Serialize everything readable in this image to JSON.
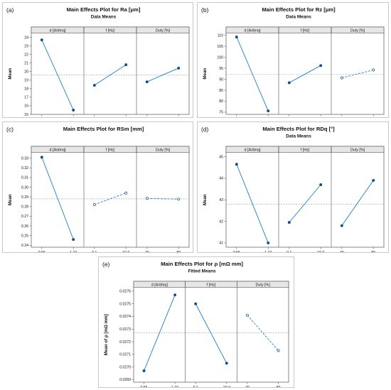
{
  "colors": {
    "line": "#1f7fc4",
    "marker": "#0a4e8e",
    "ref": "#9a9a9a",
    "border": "#c8c8c8",
    "header": "#e6e6e6"
  },
  "chart_data": [
    {
      "label": "(a)",
      "type": "line",
      "title": "Main Effects Plot for Ra [μm]",
      "subtitle": "Data Means",
      "ylabel": "Mean",
      "ylim": [
        15,
        24.5
      ],
      "yticks": [
        15,
        16,
        17,
        18,
        19,
        20,
        21,
        22,
        23,
        24
      ],
      "ref": 19.6,
      "factors": [
        {
          "name": "d [A/dmq]",
          "levels": [
            "0.55",
            "1.10"
          ],
          "values": [
            23.7,
            15.5
          ],
          "dashed": false
        },
        {
          "name": "f [Hz]",
          "levels": [
            "0.1",
            "10.0"
          ],
          "values": [
            18.4,
            20.8
          ],
          "dashed": false
        },
        {
          "name": "Duty [%]",
          "levels": [
            "70",
            "80"
          ],
          "values": [
            18.8,
            20.4
          ],
          "dashed": false
        }
      ]
    },
    {
      "label": "(b)",
      "type": "line",
      "title": "Main Effects Plot for Rz [μm]",
      "subtitle": "Data Means",
      "ylabel": "Mean",
      "ylim": [
        74,
        111
      ],
      "yticks": [
        75,
        80,
        85,
        90,
        95,
        100,
        105,
        110
      ],
      "ref": 92.3,
      "factors": [
        {
          "name": "d [A/dmq]",
          "levels": [
            "0.55",
            "1.10"
          ],
          "values": [
            109.2,
            75.6
          ],
          "dashed": false
        },
        {
          "name": "f [Hz]",
          "levels": [
            "0.1",
            "10.0"
          ],
          "values": [
            88.4,
            96.2
          ],
          "dashed": false
        },
        {
          "name": "Duty [%]",
          "levels": [
            "70",
            "80"
          ],
          "values": [
            90.6,
            94.2
          ],
          "dashed": true
        }
      ]
    },
    {
      "label": "(c)",
      "type": "line",
      "title": "Main Effects Plot for RSm [mm]",
      "subtitle": "",
      "ylabel": "Mean",
      "ylim": [
        0.238,
        0.336
      ],
      "yticks": [
        0.24,
        0.25,
        0.26,
        0.27,
        0.28,
        0.29,
        0.3,
        0.31,
        0.32,
        0.33
      ],
      "ref": 0.288,
      "factors": [
        {
          "name": "d [A/dmq]",
          "levels": [
            "0.55",
            "1.10"
          ],
          "values": [
            0.331,
            0.246
          ],
          "dashed": false
        },
        {
          "name": "f [Hz]",
          "levels": [
            "0.1",
            "10.0"
          ],
          "values": [
            0.282,
            0.294
          ],
          "dashed": true
        },
        {
          "name": "Duty [%]",
          "levels": [
            "70",
            "80"
          ],
          "values": [
            0.2885,
            0.2877
          ],
          "dashed": true
        }
      ]
    },
    {
      "label": "(d)",
      "type": "line",
      "title": "Main Effects Plot for RDq [°]",
      "subtitle": "Data Means",
      "ylabel": "Mean",
      "ylim": [
        40.8,
        45.2
      ],
      "yticks": [
        41,
        42,
        43,
        44,
        45
      ],
      "ref": 42.8,
      "factors": [
        {
          "name": "d [A/dmq]",
          "levels": [
            "0.55",
            "1.10"
          ],
          "values": [
            44.65,
            41.0
          ],
          "dashed": false
        },
        {
          "name": "f [Hz]",
          "levels": [
            "0.1",
            "10.0"
          ],
          "values": [
            41.95,
            43.7
          ],
          "dashed": false
        },
        {
          "name": "Duty [%]",
          "levels": [
            "70",
            "80"
          ],
          "values": [
            41.8,
            43.9
          ],
          "dashed": false
        }
      ]
    },
    {
      "label": "(e)",
      "type": "line",
      "title": "Main Effects Plot for ρ [mΩ mm]",
      "subtitle": "Fitted Means",
      "ylabel": "Mean of ρ [mΩ mm]",
      "ylim": [
        0.02688,
        0.02763
      ],
      "yticks": [
        0.0269,
        0.027,
        0.0271,
        0.0272,
        0.0273,
        0.0274,
        0.0275,
        0.0276
      ],
      "ref": 0.02727,
      "factors": [
        {
          "name": "d [A/dmq]",
          "levels": [
            "0.55",
            "1.10"
          ],
          "values": [
            0.02697,
            0.02757
          ],
          "dashed": false
        },
        {
          "name": "f [Hz]",
          "levels": [
            "0.1",
            "10.0"
          ],
          "values": [
            0.0275,
            0.02703
          ],
          "dashed": false
        },
        {
          "name": "Duty [%]",
          "levels": [
            "70",
            "80"
          ],
          "values": [
            0.02741,
            0.02713
          ],
          "dashed": true
        }
      ]
    }
  ]
}
